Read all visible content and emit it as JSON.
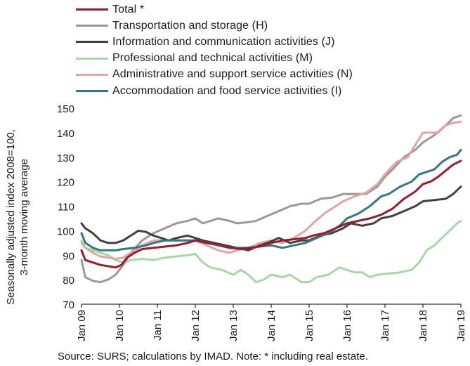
{
  "legend": [
    {
      "label": "Total *",
      "color": "#9b1a2e"
    },
    {
      "label": "Transportation and storage (H)",
      "color": "#999999"
    },
    {
      "label": "Information and communication activities (J)",
      "color": "#404040"
    },
    {
      "label": "Professional and technical activities (M)",
      "color": "#a6d7a6"
    },
    {
      "label": "Administrative and support service activities (N)",
      "color": "#e6a3a3"
    },
    {
      "label": "Accommodation and food service activities (I)",
      "color": "#2e7982"
    }
  ],
  "source": "Source:  SURS; calculations by IMAD. Note: * including real estate.",
  "chart_data": {
    "type": "line",
    "ylabel": "Seasonally adjusted index 2008=100,\n3-month moving average",
    "ylabel_lines": [
      "Seasonally adjusted index 2008=100,",
      "3-month moving average"
    ],
    "ylim": [
      70,
      150
    ],
    "yticks": [
      70,
      80,
      90,
      100,
      110,
      120,
      130,
      140,
      150
    ],
    "xlim": [
      2009.0,
      2019.0
    ],
    "xticks": [
      {
        "x": 2009,
        "label": "Jan 09"
      },
      {
        "x": 2010,
        "label": "Jan 10"
      },
      {
        "x": 2011,
        "label": "Jan 11"
      },
      {
        "x": 2012,
        "label": "Jan 12"
      },
      {
        "x": 2013,
        "label": "Jan 13"
      },
      {
        "x": 2014,
        "label": "Jan 14"
      },
      {
        "x": 2015,
        "label": "Jan 15"
      },
      {
        "x": 2016,
        "label": "Jan 16"
      },
      {
        "x": 2017,
        "label": "Jan 17"
      },
      {
        "x": 2018,
        "label": "Jan 18"
      },
      {
        "x": 2019,
        "label": "Jan 19"
      }
    ],
    "grid": false,
    "legend_position": "top",
    "series": [
      {
        "name": "Total *",
        "color": "#9b1a2e",
        "points": [
          [
            2009.0,
            92
          ],
          [
            2009.1,
            88
          ],
          [
            2009.3,
            87
          ],
          [
            2009.5,
            86
          ],
          [
            2009.7,
            85.5
          ],
          [
            2009.9,
            85
          ],
          [
            2010.05,
            86
          ],
          [
            2010.2,
            89
          ],
          [
            2010.4,
            91
          ],
          [
            2010.6,
            92.5
          ],
          [
            2010.9,
            93
          ],
          [
            2011.2,
            93.5
          ],
          [
            2011.5,
            94
          ],
          [
            2011.8,
            95
          ],
          [
            2012.0,
            96
          ],
          [
            2012.3,
            95
          ],
          [
            2012.6,
            94.5
          ],
          [
            2012.9,
            93
          ],
          [
            2013.2,
            92.5
          ],
          [
            2013.5,
            93
          ],
          [
            2013.8,
            94
          ],
          [
            2014.0,
            95
          ],
          [
            2014.3,
            96
          ],
          [
            2014.6,
            96.5
          ],
          [
            2014.9,
            97
          ],
          [
            2015.1,
            98
          ],
          [
            2015.4,
            99
          ],
          [
            2015.7,
            101
          ],
          [
            2016.0,
            103
          ],
          [
            2016.3,
            104
          ],
          [
            2016.6,
            105
          ],
          [
            2016.9,
            106.5
          ],
          [
            2017.2,
            109
          ],
          [
            2017.5,
            113
          ],
          [
            2017.8,
            116
          ],
          [
            2018.0,
            119
          ],
          [
            2018.2,
            120
          ],
          [
            2018.4,
            122
          ],
          [
            2018.6,
            124.5
          ],
          [
            2018.8,
            127
          ],
          [
            2019.0,
            128.5
          ]
        ]
      },
      {
        "name": "Transportation and storage (H)",
        "color": "#999999",
        "points": [
          [
            2009.0,
            88
          ],
          [
            2009.1,
            81
          ],
          [
            2009.3,
            79.5
          ],
          [
            2009.5,
            79
          ],
          [
            2009.7,
            80
          ],
          [
            2009.9,
            82
          ],
          [
            2010.1,
            86
          ],
          [
            2010.3,
            91
          ],
          [
            2010.6,
            96
          ],
          [
            2010.9,
            99
          ],
          [
            2011.2,
            101
          ],
          [
            2011.5,
            103
          ],
          [
            2011.8,
            104
          ],
          [
            2012.0,
            105
          ],
          [
            2012.2,
            103
          ],
          [
            2012.4,
            104
          ],
          [
            2012.6,
            105
          ],
          [
            2012.9,
            104
          ],
          [
            2013.1,
            103
          ],
          [
            2013.4,
            103.5
          ],
          [
            2013.6,
            104
          ],
          [
            2013.9,
            106
          ],
          [
            2014.2,
            108
          ],
          [
            2014.5,
            110
          ],
          [
            2014.8,
            111
          ],
          [
            2015.0,
            111
          ],
          [
            2015.3,
            113
          ],
          [
            2015.6,
            113.5
          ],
          [
            2015.9,
            115
          ],
          [
            2016.2,
            115
          ],
          [
            2016.5,
            115
          ],
          [
            2016.8,
            118
          ],
          [
            2017.0,
            122
          ],
          [
            2017.2,
            125
          ],
          [
            2017.5,
            130
          ],
          [
            2017.8,
            133
          ],
          [
            2018.0,
            136
          ],
          [
            2018.3,
            139
          ],
          [
            2018.6,
            143
          ],
          [
            2018.8,
            146
          ],
          [
            2019.0,
            147
          ]
        ]
      },
      {
        "name": "Information and communication activities (J)",
        "color": "#404040",
        "points": [
          [
            2009.0,
            103
          ],
          [
            2009.1,
            101
          ],
          [
            2009.3,
            99
          ],
          [
            2009.5,
            96
          ],
          [
            2009.7,
            95
          ],
          [
            2009.9,
            95
          ],
          [
            2010.1,
            96
          ],
          [
            2010.3,
            98
          ],
          [
            2010.5,
            100
          ],
          [
            2010.7,
            99.5
          ],
          [
            2010.9,
            98
          ],
          [
            2011.1,
            97
          ],
          [
            2011.3,
            96
          ],
          [
            2011.5,
            97
          ],
          [
            2011.8,
            98
          ],
          [
            2012.0,
            97
          ],
          [
            2012.2,
            96
          ],
          [
            2012.5,
            95
          ],
          [
            2012.8,
            94
          ],
          [
            2013.1,
            93
          ],
          [
            2013.4,
            92
          ],
          [
            2013.7,
            94
          ],
          [
            2013.9,
            95
          ],
          [
            2014.2,
            97
          ],
          [
            2014.5,
            95
          ],
          [
            2014.8,
            96
          ],
          [
            2015.0,
            96
          ],
          [
            2015.3,
            98
          ],
          [
            2015.6,
            99
          ],
          [
            2015.9,
            101
          ],
          [
            2016.1,
            103
          ],
          [
            2016.4,
            102
          ],
          [
            2016.7,
            103
          ],
          [
            2016.9,
            105
          ],
          [
            2017.2,
            106
          ],
          [
            2017.5,
            108
          ],
          [
            2017.8,
            110
          ],
          [
            2018.0,
            112
          ],
          [
            2018.3,
            112.5
          ],
          [
            2018.6,
            113
          ],
          [
            2018.8,
            115
          ],
          [
            2019.0,
            118
          ]
        ]
      },
      {
        "name": "Professional and technical activities (M)",
        "color": "#a6d7a6",
        "points": [
          [
            2009.0,
            96
          ],
          [
            2009.1,
            93
          ],
          [
            2009.3,
            92
          ],
          [
            2009.5,
            91
          ],
          [
            2009.7,
            90
          ],
          [
            2009.9,
            88
          ],
          [
            2010.1,
            87
          ],
          [
            2010.3,
            88
          ],
          [
            2010.6,
            88.5
          ],
          [
            2010.9,
            88
          ],
          [
            2011.2,
            89
          ],
          [
            2011.5,
            89.5
          ],
          [
            2011.8,
            90
          ],
          [
            2012.0,
            90.5
          ],
          [
            2012.2,
            87
          ],
          [
            2012.4,
            85
          ],
          [
            2012.7,
            84
          ],
          [
            2013.0,
            82
          ],
          [
            2013.2,
            84
          ],
          [
            2013.4,
            82
          ],
          [
            2013.6,
            79
          ],
          [
            2013.8,
            80
          ],
          [
            2014.0,
            82
          ],
          [
            2014.3,
            81
          ],
          [
            2014.5,
            82
          ],
          [
            2014.8,
            79
          ],
          [
            2015.0,
            79
          ],
          [
            2015.2,
            81
          ],
          [
            2015.5,
            82
          ],
          [
            2015.8,
            85
          ],
          [
            2016.0,
            84
          ],
          [
            2016.2,
            83
          ],
          [
            2016.4,
            83
          ],
          [
            2016.6,
            81
          ],
          [
            2016.8,
            82
          ],
          [
            2017.1,
            82.5
          ],
          [
            2017.4,
            83
          ],
          [
            2017.7,
            84
          ],
          [
            2017.9,
            87
          ],
          [
            2018.1,
            92
          ],
          [
            2018.3,
            94
          ],
          [
            2018.5,
            97
          ],
          [
            2018.7,
            100
          ],
          [
            2018.9,
            103
          ],
          [
            2019.0,
            104
          ]
        ]
      },
      {
        "name": "Administrative and support service activities (N)",
        "color": "#e6a3a3",
        "points": [
          [
            2009.0,
            95
          ],
          [
            2009.1,
            93
          ],
          [
            2009.3,
            91
          ],
          [
            2009.5,
            89.5
          ],
          [
            2009.7,
            89
          ],
          [
            2009.9,
            88.5
          ],
          [
            2010.1,
            89
          ],
          [
            2010.3,
            91
          ],
          [
            2010.6,
            94
          ],
          [
            2010.9,
            96
          ],
          [
            2011.2,
            96
          ],
          [
            2011.5,
            96
          ],
          [
            2011.8,
            96
          ],
          [
            2012.0,
            96
          ],
          [
            2012.3,
            94
          ],
          [
            2012.6,
            92
          ],
          [
            2012.9,
            91
          ],
          [
            2013.1,
            92
          ],
          [
            2013.4,
            93
          ],
          [
            2013.7,
            95
          ],
          [
            2014.0,
            96
          ],
          [
            2014.3,
            95
          ],
          [
            2014.6,
            97
          ],
          [
            2014.9,
            100
          ],
          [
            2015.1,
            103
          ],
          [
            2015.4,
            107
          ],
          [
            2015.7,
            110
          ],
          [
            2015.9,
            112
          ],
          [
            2016.2,
            114
          ],
          [
            2016.5,
            115.5
          ],
          [
            2016.8,
            119
          ],
          [
            2017.0,
            123
          ],
          [
            2017.3,
            128
          ],
          [
            2017.6,
            130
          ],
          [
            2017.8,
            135
          ],
          [
            2018.0,
            140
          ],
          [
            2018.2,
            140
          ],
          [
            2018.4,
            140
          ],
          [
            2018.6,
            143
          ],
          [
            2018.8,
            144
          ],
          [
            2019.0,
            144.5
          ]
        ]
      },
      {
        "name": "Accommodation and food service activities (I)",
        "color": "#2e7982",
        "points": [
          [
            2009.0,
            99
          ],
          [
            2009.1,
            95
          ],
          [
            2009.3,
            93
          ],
          [
            2009.5,
            92
          ],
          [
            2009.7,
            92
          ],
          [
            2009.9,
            92
          ],
          [
            2010.1,
            92.5
          ],
          [
            2010.4,
            93
          ],
          [
            2010.7,
            94
          ],
          [
            2010.9,
            95
          ],
          [
            2011.2,
            96
          ],
          [
            2011.5,
            96
          ],
          [
            2011.8,
            96
          ],
          [
            2012.0,
            96
          ],
          [
            2012.3,
            95
          ],
          [
            2012.6,
            94
          ],
          [
            2012.9,
            93
          ],
          [
            2013.1,
            93
          ],
          [
            2013.4,
            93
          ],
          [
            2013.7,
            93.5
          ],
          [
            2014.0,
            94
          ],
          [
            2014.3,
            93
          ],
          [
            2014.6,
            94
          ],
          [
            2014.9,
            95
          ],
          [
            2015.2,
            97
          ],
          [
            2015.5,
            99
          ],
          [
            2015.8,
            102
          ],
          [
            2016.0,
            105
          ],
          [
            2016.3,
            107
          ],
          [
            2016.6,
            110
          ],
          [
            2016.9,
            114
          ],
          [
            2017.1,
            115
          ],
          [
            2017.4,
            118
          ],
          [
            2017.7,
            120
          ],
          [
            2017.9,
            123
          ],
          [
            2018.1,
            124
          ],
          [
            2018.3,
            125
          ],
          [
            2018.5,
            128
          ],
          [
            2018.7,
            130
          ],
          [
            2018.9,
            131
          ],
          [
            2019.0,
            133
          ]
        ]
      }
    ]
  }
}
